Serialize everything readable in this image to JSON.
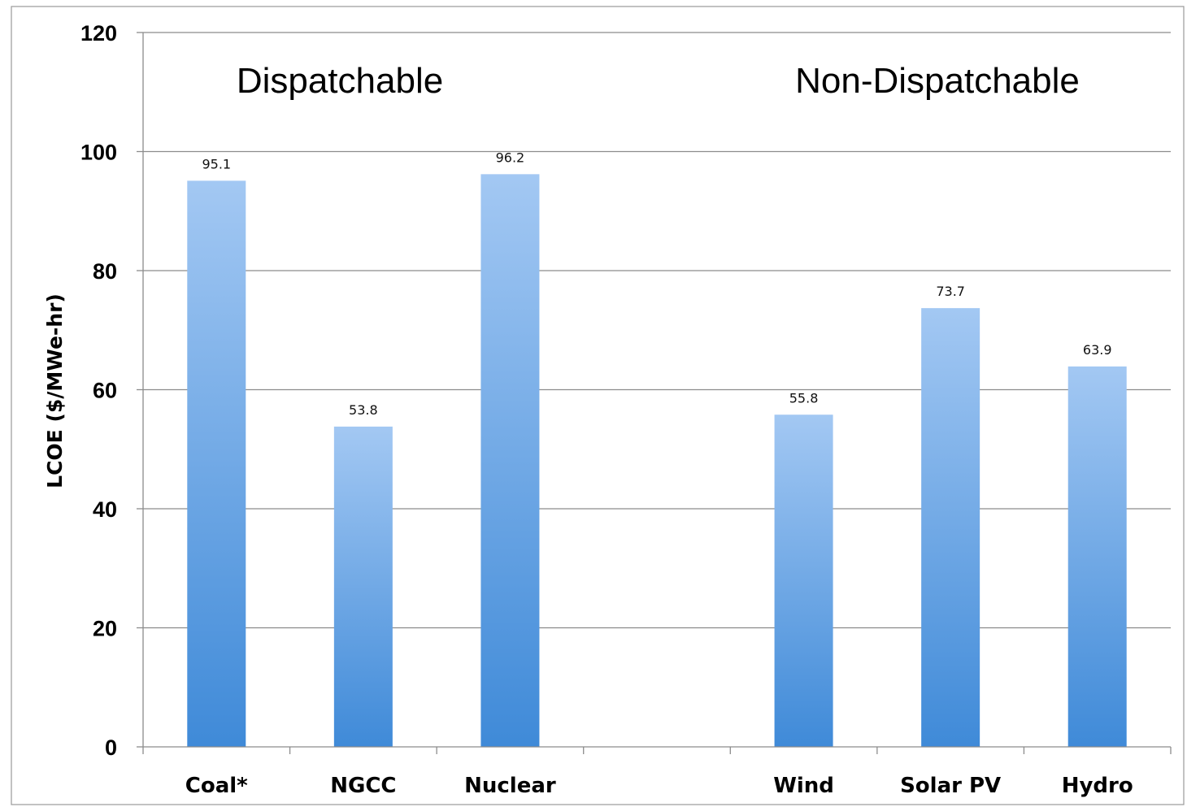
{
  "chart_data": {
    "type": "bar",
    "categories": [
      "Coal*",
      "NGCC",
      "Nuclear",
      "",
      "Wind",
      "Solar PV",
      "Hydro"
    ],
    "values": [
      95.1,
      53.8,
      96.2,
      null,
      55.8,
      73.7,
      63.9
    ],
    "data_labels": [
      "95.1",
      "53.8",
      "96.2",
      "",
      "55.8",
      "73.7",
      "63.9"
    ],
    "title": "",
    "xlabel": "",
    "ylabel": "LCOE ($/MWe-hr)",
    "ylim": [
      0,
      120
    ],
    "yticks": [
      0,
      20,
      40,
      60,
      80,
      100,
      120
    ],
    "grid": true,
    "legend": "none",
    "annotations": [
      {
        "text": "Dispatchable",
        "over": "Coal*–Nuclear"
      },
      {
        "text": "Non-Dispatchable",
        "over": "Wind–Hydro"
      }
    ],
    "colors": {
      "bar_top": "#a3c8f3",
      "bar_bottom": "#3f8ad8",
      "grid": "#8c8c8c",
      "axis": "#8c8c8c"
    }
  }
}
